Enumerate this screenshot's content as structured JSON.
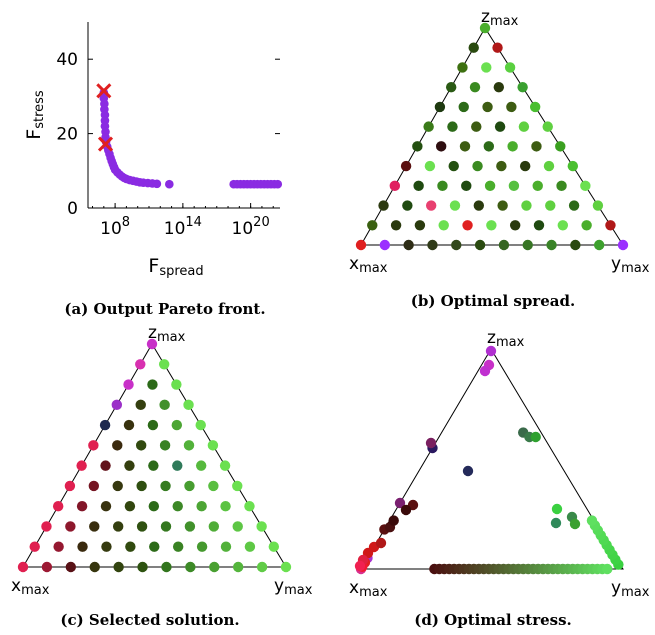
{
  "chart_data": [
    {
      "type": "scatter",
      "panel": "a",
      "caption": "(a) Output Pareto front.",
      "ylabel": {
        "main": "F",
        "sub": "stress"
      },
      "xlabel": {
        "main": "F",
        "sub": "spread"
      },
      "xscale": "log",
      "xlim_log10": [
        5.6,
        22.6
      ],
      "ylim": [
        0,
        50
      ],
      "yticks": [
        "0",
        "20",
        "40"
      ],
      "xticks": [
        {
          "base": "10",
          "exp": "8",
          "value_log10": 8
        },
        {
          "base": "10",
          "exp": "14",
          "value_log10": 14
        },
        {
          "base": "10",
          "exp": "20",
          "value_log10": 20
        }
      ],
      "point_color": "#8A2BE2",
      "marker_color": "#E02020",
      "points_log10x_y": [
        [
          7.0,
          31.0
        ],
        [
          7.0,
          29.5
        ],
        [
          7.05,
          28
        ],
        [
          7.05,
          26.5
        ],
        [
          7.1,
          25
        ],
        [
          7.1,
          23.5
        ],
        [
          7.1,
          22
        ],
        [
          7.15,
          20.5
        ],
        [
          7.15,
          19
        ],
        [
          7.2,
          17.8
        ],
        [
          7.3,
          16.5
        ],
        [
          7.4,
          15.5
        ],
        [
          7.5,
          14.5
        ],
        [
          7.6,
          13.5
        ],
        [
          7.7,
          12.6
        ],
        [
          7.8,
          11.8
        ],
        [
          7.9,
          11
        ],
        [
          8.0,
          10.3
        ],
        [
          8.2,
          9.6
        ],
        [
          8.4,
          9
        ],
        [
          8.6,
          8.5
        ],
        [
          8.8,
          8.1
        ],
        [
          9.0,
          7.8
        ],
        [
          9.3,
          7.5
        ],
        [
          9.6,
          7.3
        ],
        [
          9.9,
          7.1
        ],
        [
          10.2,
          6.9
        ],
        [
          10.5,
          6.8
        ],
        [
          10.9,
          6.7
        ],
        [
          11.3,
          6.6
        ],
        [
          11.7,
          6.5
        ],
        [
          12.8,
          6.4
        ],
        [
          18.5,
          6.4
        ],
        [
          18.8,
          6.4
        ],
        [
          19.1,
          6.4
        ],
        [
          19.4,
          6.4
        ],
        [
          19.7,
          6.4
        ],
        [
          20.0,
          6.4
        ],
        [
          20.3,
          6.4
        ],
        [
          20.6,
          6.4
        ],
        [
          20.9,
          6.4
        ],
        [
          21.2,
          6.4
        ],
        [
          21.5,
          6.4
        ],
        [
          21.8,
          6.4
        ],
        [
          22.1,
          6.4
        ],
        [
          22.4,
          6.4
        ]
      ],
      "highlighted_log10x_y": [
        [
          7.0,
          31.5
        ],
        [
          7.15,
          17.2
        ]
      ]
    },
    {
      "type": "ternary-scatter",
      "panel": "b",
      "caption": "(b) Optimal spread.",
      "vertex_labels": {
        "x": {
          "main": "x",
          "sub": "max"
        },
        "y": {
          "main": "y",
          "sub": "max"
        },
        "z": {
          "main": "z",
          "sub": "max"
        }
      },
      "grid": "regular",
      "rows": 12,
      "highlight_colors": {
        "1,4": "#E02020",
        "0,1": "#9B30FF",
        "3,0": "#E02060",
        "5,1": "#2E0E10",
        "7,5": "#8A2BE2",
        "2,2": "#E84070",
        "0,11": "#9B30FF",
        "1,10": "#B01818"
      }
    },
    {
      "type": "ternary-scatter",
      "panel": "c",
      "caption": "(c) Selected solution.",
      "vertex_labels": {
        "x": {
          "main": "x",
          "sub": "max"
        },
        "y": {
          "main": "y",
          "sub": "max"
        },
        "z": {
          "main": "z",
          "sub": "max"
        }
      },
      "grid": "staggered",
      "rows": 12
    },
    {
      "type": "ternary-scatter",
      "panel": "d",
      "caption": "(d) Optimal stress.",
      "vertex_labels": {
        "x": {
          "main": "x",
          "sub": "max"
        },
        "y": {
          "main": "y",
          "sub": "max"
        },
        "z": {
          "main": "z",
          "sub": "max"
        }
      },
      "points_uvw": [
        [
          0.0,
          0.0,
          1.0,
          "#D8308E"
        ],
        [
          0.03,
          0.0,
          0.97,
          "#C830C8"
        ],
        [
          0.05,
          0.0,
          0.95,
          "#A830D0"
        ],
        [
          0.3,
          0.0,
          0.7,
          "#7A2070"
        ],
        [
          0.55,
          0.0,
          0.45,
          "#2A1860"
        ],
        [
          0.62,
          0.08,
          0.3,
          "#3A6A4A"
        ],
        [
          0.6,
          0.12,
          0.28,
          "#3A7A4A"
        ],
        [
          0.6,
          0.18,
          0.22,
          "#2FA030"
        ],
        [
          0.18,
          0.0,
          0.82,
          "#5A1010"
        ],
        [
          0.19,
          0.02,
          0.79,
          "#4A1010"
        ],
        [
          0.22,
          0.02,
          0.76,
          "#3A0A0A"
        ],
        [
          0.1,
          0.0,
          0.9,
          "#D01818"
        ],
        [
          0.03,
          0.0,
          0.97,
          "#E02020"
        ],
        [
          0.01,
          0.0,
          0.99,
          "#F01830"
        ]
      ],
      "base_row": {
        "start": 0.28,
        "end": 0.94,
        "count": 36,
        "color_from": "#4A1010",
        "color_to": "#5FE060"
      },
      "right_edge": {
        "start": 0.02,
        "end": 0.22,
        "count": 10,
        "color_from": "#3AD040",
        "color_to": "#5FE060"
      }
    }
  ]
}
